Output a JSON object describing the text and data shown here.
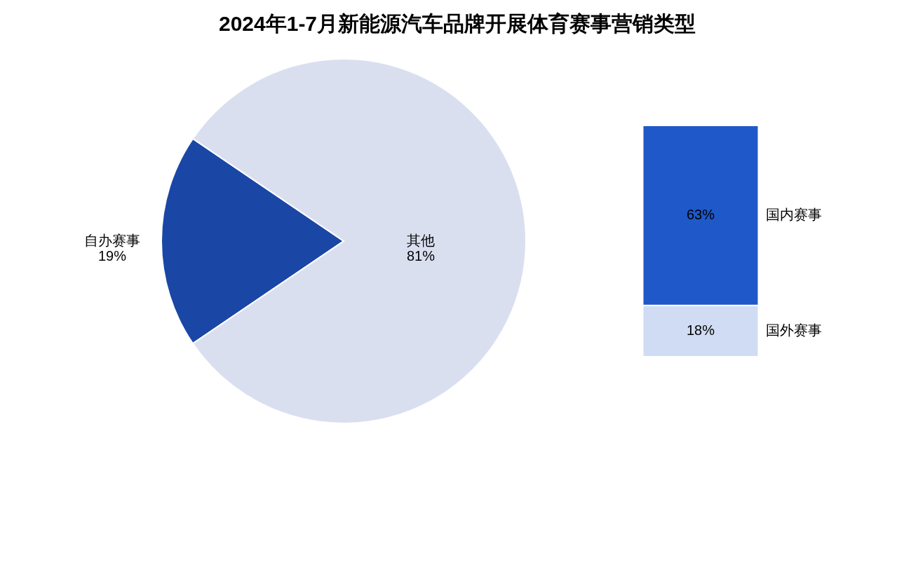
{
  "chart_data": [
    {
      "type": "pie",
      "title": "2024年1-7月新能源汽车品牌开展体育赛事营销类型",
      "categories": [
        "自办赛事",
        "其他"
      ],
      "values": [
        19,
        81
      ],
      "colors": [
        "#1a47a6",
        "#dadff0"
      ],
      "value_labels": [
        "19%",
        "81%"
      ]
    },
    {
      "type": "bar",
      "stacked": true,
      "categories": [
        null
      ],
      "series": [
        {
          "name": "国外赛事",
          "color": "#d0dcf3",
          "values": [
            18
          ],
          "value_labels": [
            "18%"
          ]
        },
        {
          "name": "国内赛事",
          "color": "#1f58c9",
          "values": [
            63
          ],
          "value_labels": [
            "63%"
          ]
        }
      ]
    }
  ]
}
